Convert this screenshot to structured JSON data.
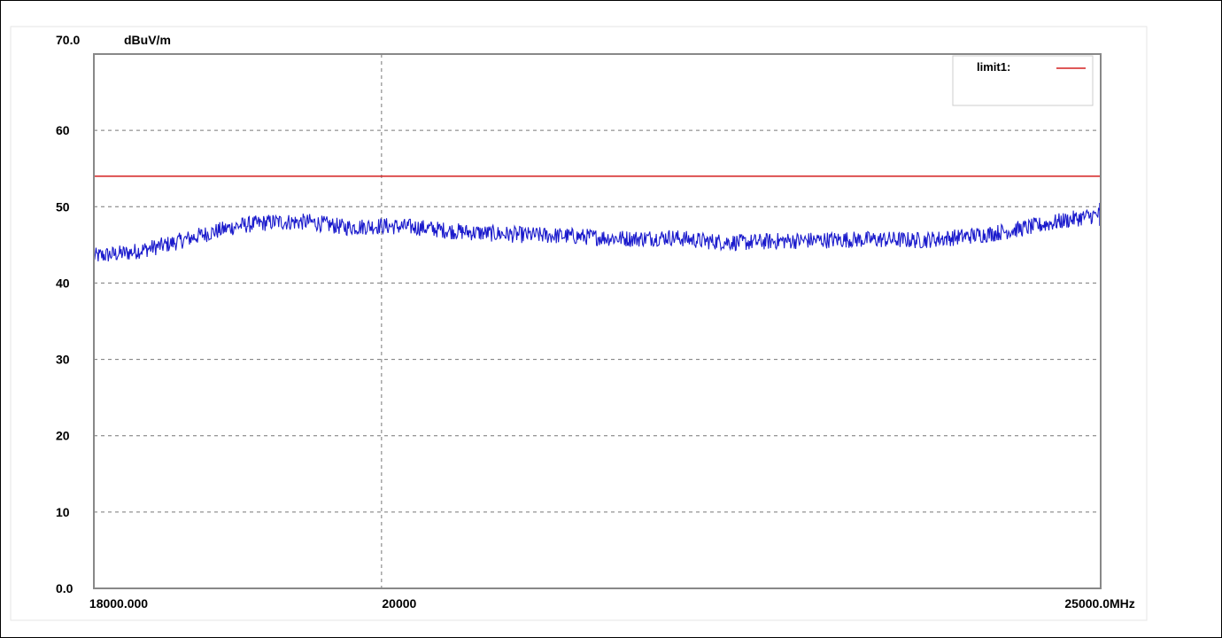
{
  "chart_data": {
    "type": "line",
    "ylabel": "dBuV/m",
    "x_unit": "MHz",
    "xlim": [
      18000,
      25000
    ],
    "ylim": [
      0,
      70
    ],
    "x_tick_labels": [
      "18000.000",
      "20000",
      "25000.0"
    ],
    "y_tick_labels": [
      "70.0",
      "60",
      "50",
      "40",
      "30",
      "20",
      "10",
      "0.0"
    ],
    "grid": true,
    "legend_position": "top-right",
    "colors": {
      "measurement": "#1a1acc",
      "limit": "#d42020",
      "grid": "#777777",
      "frame": "#888888"
    },
    "series": [
      {
        "name": "limit1:",
        "color": "#d42020",
        "x": [
          18000,
          25000
        ],
        "values": [
          54,
          54
        ]
      },
      {
        "name": "",
        "color": "#1a1acc",
        "x": [
          18000,
          18250,
          18500,
          18750,
          19000,
          19250,
          19500,
          19750,
          20000,
          20250,
          20500,
          20750,
          21000,
          21250,
          21500,
          21750,
          22000,
          22250,
          22500,
          22750,
          23000,
          23250,
          23500,
          23750,
          24000,
          24250,
          24500,
          24750,
          25000
        ],
        "values": [
          43.5,
          44.0,
          45.0,
          46.3,
          47.5,
          48.0,
          48.0,
          47.3,
          47.5,
          47.3,
          46.8,
          46.5,
          46.3,
          46.2,
          46.0,
          45.8,
          46.0,
          45.5,
          45.3,
          45.5,
          45.6,
          45.7,
          45.7,
          45.6,
          46.0,
          46.5,
          47.3,
          48.2,
          49.0
        ]
      }
    ]
  }
}
